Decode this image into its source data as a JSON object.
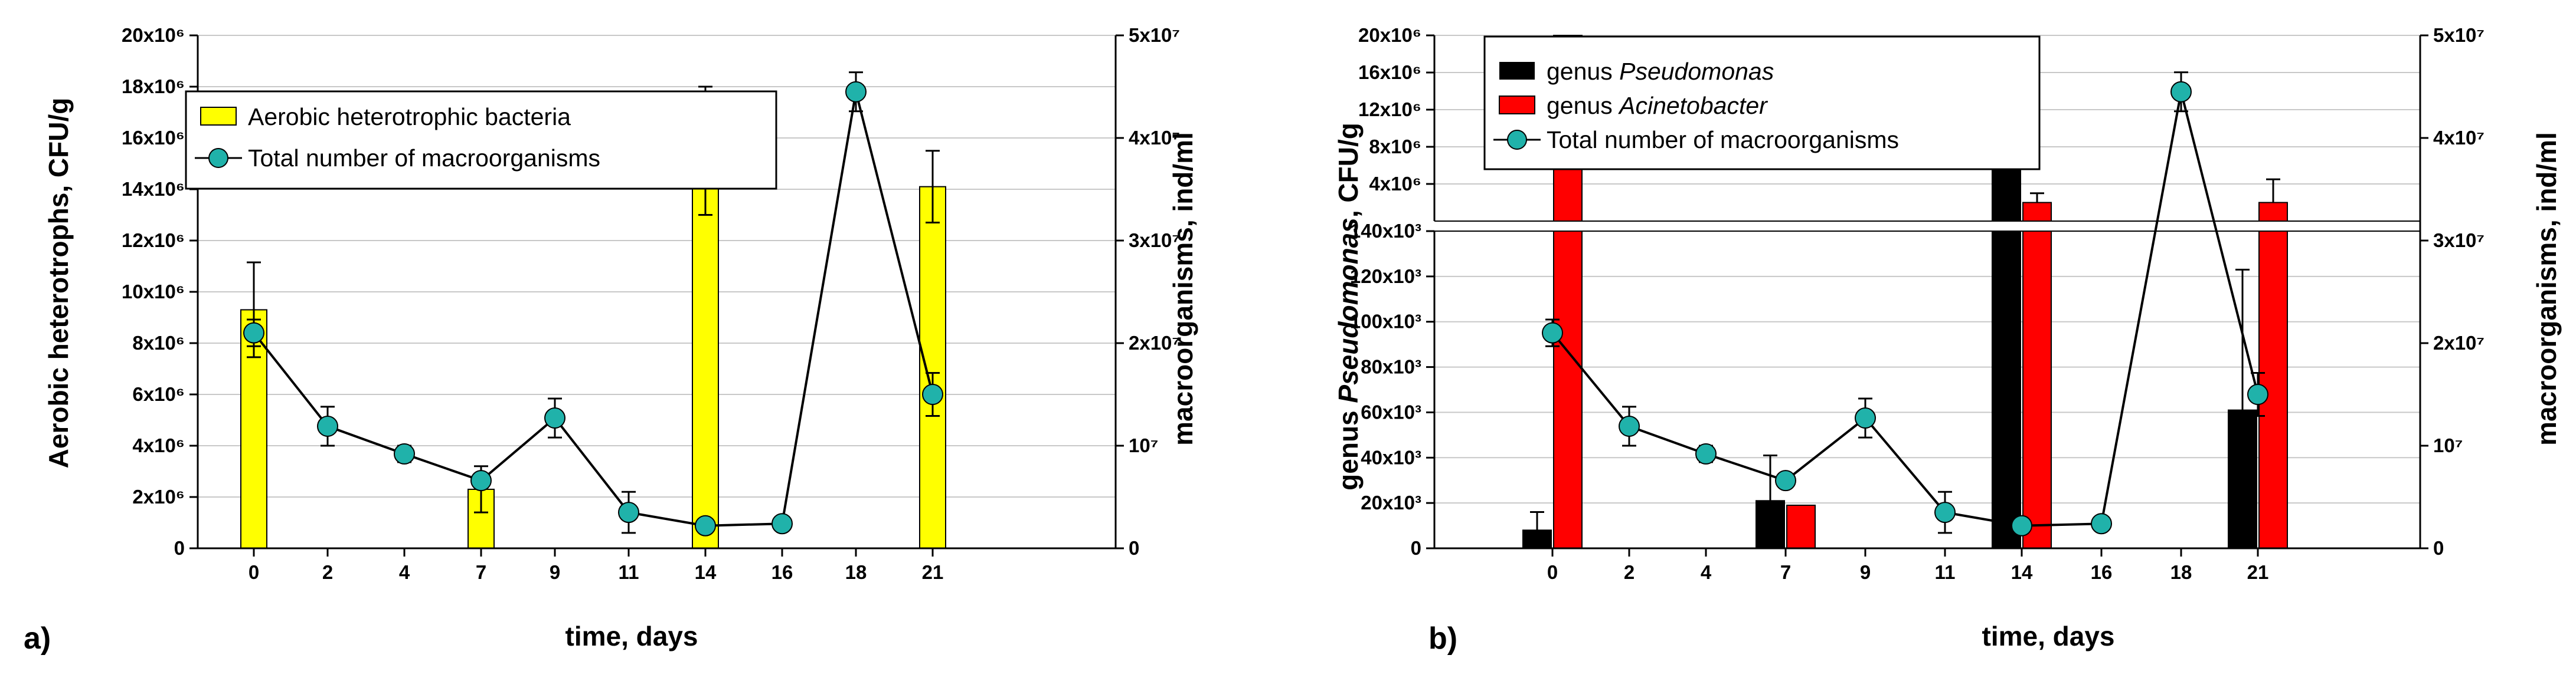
{
  "colors": {
    "yellow_bar": "#ffff00",
    "black_bar": "#000000",
    "red_bar": "#ff0000",
    "marker": "#20b2aa",
    "grid": "#c8c8c8"
  },
  "chart_data": [
    {
      "type": "bar",
      "panel_label": "a)",
      "xlabel": "time, days",
      "ylabel": "Aerobic heterotrophs, CFU/g",
      "y2label": "macroorganisms, ind/ml",
      "x_ticks": [
        "0",
        "2",
        "4",
        "7",
        "9",
        "11",
        "14",
        "16",
        "18",
        "21"
      ],
      "y_ticks": [
        "0",
        "2x10⁶",
        "4x10⁶",
        "6x10⁶",
        "8x10⁶",
        "10x10⁶",
        "12x10⁶",
        "14x10⁶",
        "16x10⁶",
        "18x10⁶",
        "20x10⁶"
      ],
      "y2_ticks": [
        "0",
        "10⁷",
        "2x10⁷",
        "3x10⁷",
        "4x10⁷",
        "5x10⁷"
      ],
      "ylim": [
        0,
        20000000
      ],
      "y2lim": [
        0,
        50000000
      ],
      "legend": {
        "bars": "Aerobic heterotrophic bacteria",
        "line": "Total number of macroorganisms"
      },
      "bars": [
        {
          "x": 0,
          "value": 9300000,
          "err": 1850000
        },
        {
          "x": 7,
          "value": 2300000,
          "err": 900000
        },
        {
          "x": 14,
          "value": 15500000,
          "err": 2500000
        },
        {
          "x": 21,
          "value": 14100000,
          "err": 1400000
        }
      ],
      "line": [
        {
          "x": 0,
          "value": 21000000,
          "err": 1300000
        },
        {
          "x": 2,
          "value": 11900000,
          "err": 1900000
        },
        {
          "x": 4,
          "value": 9200000,
          "err": 800000
        },
        {
          "x": 7,
          "value": 6600000,
          "err": 500000
        },
        {
          "x": 9,
          "value": 12700000,
          "err": 1900000
        },
        {
          "x": 11,
          "value": 3500000,
          "err": 2000000
        },
        {
          "x": 14,
          "value": 2200000,
          "err": 0
        },
        {
          "x": 16,
          "value": 2400000,
          "err": 400000
        },
        {
          "x": 18,
          "value": 44500000,
          "err": 1900000
        },
        {
          "x": 21,
          "value": 15000000,
          "err": 2100000
        }
      ]
    },
    {
      "type": "bar",
      "panel_label": "b)",
      "xlabel": "time, days",
      "ylabel_prefix": "genus ",
      "ylabel_italic": "Pseudomonas",
      "ylabel_suffix": ", CFU/g",
      "y2label": "macroorganisms, ind/ml",
      "x_ticks": [
        "0",
        "2",
        "4",
        "7",
        "9",
        "11",
        "14",
        "16",
        "18",
        "21"
      ],
      "y_ticks_lower": [
        "0",
        "20x10³",
        "40x10³",
        "60x10³",
        "80x10³",
        "100x10³",
        "120x10³",
        "140x10³"
      ],
      "y_ticks_upper": [
        "4x10⁶",
        "8x10⁶",
        "12x10⁶",
        "16x10⁶",
        "20x10⁶"
      ],
      "y2_ticks": [
        "0",
        "10⁷",
        "2x10⁷",
        "3x10⁷",
        "4x10⁷",
        "5x10⁷"
      ],
      "ylim_lower": [
        0,
        140000
      ],
      "ylim_upper": [
        0,
        20000000
      ],
      "y2lim": [
        0,
        50000000
      ],
      "legend": {
        "black_prefix": "genus ",
        "black_italic": "Pseudomonas",
        "red_prefix": "genus ",
        "red_italic": "Acinetobacter",
        "line": "Total number of macroorganisms"
      },
      "series": [
        {
          "name": "genus Pseudomonas",
          "color": "black",
          "values": [
            {
              "x": 0,
              "value": 8000,
              "err": 8000
            },
            {
              "x": 7,
              "value": 21000,
              "err": 20000
            },
            {
              "x": 14,
              "value": 8000000,
              "err": 9000000
            },
            {
              "x": 21,
              "value": 61000,
              "err": 62000
            }
          ]
        },
        {
          "name": "genus Acinetobacter",
          "color": "red",
          "values": [
            {
              "x": 0,
              "value": 20000000,
              "err": 0
            },
            {
              "x": 7,
              "value": 19000,
              "err": 0
            },
            {
              "x": 14,
              "value": 2000000,
              "err": 1000000
            },
            {
              "x": 21,
              "value": 2000000,
              "err": 2500000
            }
          ]
        }
      ],
      "line": [
        {
          "x": 0,
          "value": 21000000,
          "err": 1300000
        },
        {
          "x": 2,
          "value": 11900000,
          "err": 1900000
        },
        {
          "x": 4,
          "value": 9200000,
          "err": 800000
        },
        {
          "x": 7,
          "value": 6600000,
          "err": 500000
        },
        {
          "x": 9,
          "value": 12700000,
          "err": 1900000
        },
        {
          "x": 11,
          "value": 3500000,
          "err": 2000000
        },
        {
          "x": 14,
          "value": 2200000,
          "err": 0
        },
        {
          "x": 16,
          "value": 2400000,
          "err": 400000
        },
        {
          "x": 18,
          "value": 44500000,
          "err": 1900000
        },
        {
          "x": 21,
          "value": 15000000,
          "err": 2100000
        }
      ]
    }
  ]
}
